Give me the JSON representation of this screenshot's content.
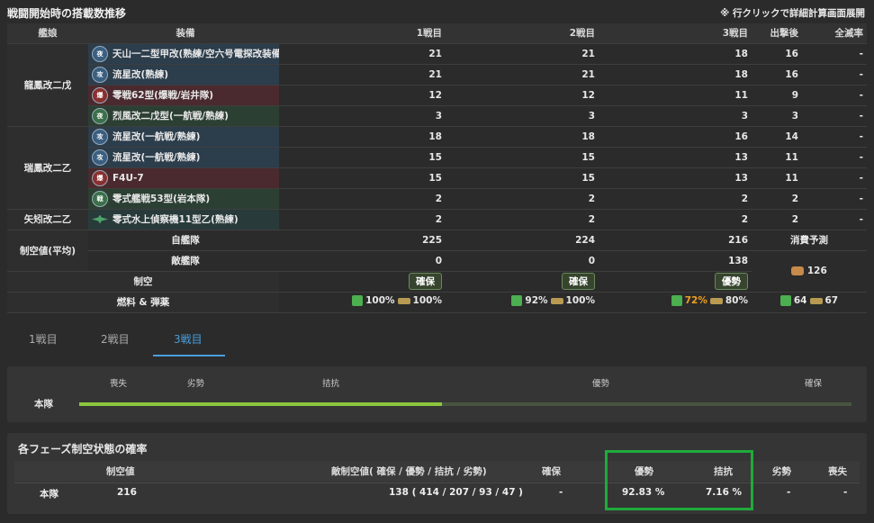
{
  "header": {
    "title": "戦闘開始時の搭載数推移",
    "note": "※ 行クリックで詳細計算画面展開"
  },
  "columns": [
    "艦娘",
    "装備",
    "1戦目",
    "2戦目",
    "3戦目",
    "出撃後",
    "全滅率"
  ],
  "rows": [
    {
      "ship": "龍鳳改二戊",
      "eq": "天山一二型甲改(熟練/空六号電探改装備...",
      "icon": "torpedo-bomber-icon",
      "b1": "21",
      "b2": "21",
      "b3": "18",
      "out": "16",
      "all": "-"
    },
    {
      "ship": "",
      "eq": "流星改(熟練)",
      "icon": "attacker-icon",
      "b1": "21",
      "b2": "21",
      "b3": "18",
      "out": "16",
      "all": "-"
    },
    {
      "ship": "",
      "eq": "零戦62型(爆戦/岩井隊)",
      "icon": "fighter-bomber-icon",
      "b1": "12",
      "b2": "12",
      "b3": "11",
      "out": "9",
      "all": "-"
    },
    {
      "ship": "",
      "eq": "烈風改二戊型(一航戦/熟練)",
      "icon": "night-fighter-icon",
      "b1": "3",
      "b2": "3",
      "b3": "3",
      "out": "3",
      "all": "-"
    },
    {
      "ship": "瑞鳳改二乙",
      "eq": "流星改(一航戦/熟練)",
      "icon": "attacker-icon",
      "b1": "18",
      "b2": "18",
      "b3": "16",
      "out": "14",
      "all": "-"
    },
    {
      "ship": "",
      "eq": "流星改(一航戦/熟練)",
      "icon": "attacker-icon",
      "b1": "15",
      "b2": "15",
      "b3": "13",
      "out": "11",
      "all": "-"
    },
    {
      "ship": "",
      "eq": "F4U-7",
      "icon": "fighter-bomber-icon",
      "b1": "15",
      "b2": "15",
      "b3": "13",
      "out": "11",
      "all": "-"
    },
    {
      "ship": "",
      "eq": "零式艦戦53型(岩本隊)",
      "icon": "fighter-icon",
      "b1": "2",
      "b2": "2",
      "b3": "2",
      "out": "2",
      "all": "-"
    },
    {
      "ship": "矢矧改二乙",
      "eq": "零式水上偵察機11型乙(熟練)",
      "icon": "seaplane-icon",
      "b1": "2",
      "b2": "2",
      "b3": "2",
      "out": "2",
      "all": "-"
    }
  ],
  "summary": {
    "air_label": "制空値(平均)",
    "own_label": "自艦隊",
    "own": [
      "225",
      "224",
      "216"
    ],
    "enemy_label": "敵艦隊",
    "enemy": [
      "0",
      "0",
      "138"
    ],
    "consume_label": "消費予測",
    "consume_value": "126",
    "state_label": "制空",
    "states": [
      "確保",
      "確保",
      "優勢"
    ],
    "supply_label": "燃料 & 弾薬",
    "supply": [
      {
        "fuel": "100%",
        "ammo": "100%"
      },
      {
        "fuel": "92%",
        "ammo": "100%"
      },
      {
        "fuel": "72%",
        "ammo": "80%"
      }
    ],
    "supply_total": {
      "fuel": "64",
      "ammo": "67"
    }
  },
  "tabs": [
    "1戦目",
    "2戦目",
    "3戦目"
  ],
  "bar": {
    "labels": [
      "喪失",
      "劣勢",
      "拮抗",
      "優勢",
      "確保"
    ],
    "row_label": "本隊",
    "fill_fraction": 0.47
  },
  "prob": {
    "title": "各フェーズ制空状態の確率",
    "headers": [
      "制空値",
      "敵制空値( 確保 / 優勢 / 拮抗 / 劣勢)",
      "確保",
      "優勢",
      "拮抗",
      "劣勢",
      "喪失"
    ],
    "row": {
      "name": "本隊",
      "air": "216",
      "enemy": "138 ( 414 / 207 / 93 / 47 )",
      "kakuho": "-",
      "yusei": "92.83 %",
      "kikkou": "7.16 %",
      "ressei": "-",
      "soushitsu": "-"
    }
  },
  "colors": {
    "accent": "#4a9edc",
    "highlight": "#1faa3c",
    "bar": "#8cc63f"
  }
}
